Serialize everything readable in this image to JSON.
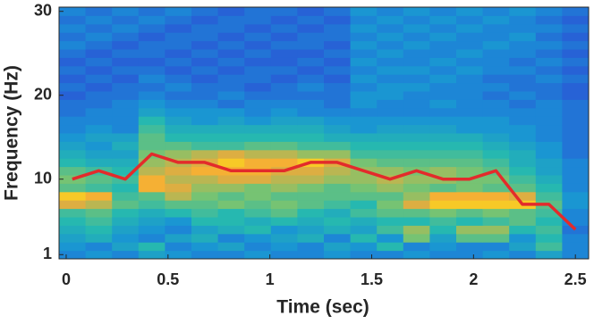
{
  "chart_data": {
    "type": "heatmap",
    "xlabel": "Time (sec)",
    "ylabel": "Frequency (Hz)",
    "x": [
      0.03,
      0.16,
      0.29,
      0.42,
      0.55,
      0.68,
      0.81,
      0.94,
      1.07,
      1.2,
      1.33,
      1.46,
      1.59,
      1.72,
      1.85,
      1.98,
      2.11,
      2.24,
      2.37,
      2.5
    ],
    "y": [
      1,
      2,
      3,
      4,
      5,
      6,
      7,
      8,
      9,
      10,
      11,
      12,
      13,
      14,
      15,
      16,
      17,
      18,
      19,
      20,
      21,
      22,
      23,
      24,
      25,
      26,
      27,
      28,
      29,
      30
    ],
    "z": [
      [
        0.3,
        0.35,
        0.3,
        0.4,
        0.35,
        0.3,
        0.3,
        0.35,
        0.3,
        0.3,
        0.35,
        0.3,
        0.3,
        0.35,
        0.3,
        0.3,
        0.35,
        0.3,
        0.4,
        0.3
      ],
      [
        0.35,
        0.3,
        0.4,
        0.5,
        0.3,
        0.35,
        0.4,
        0.3,
        0.35,
        0.3,
        0.4,
        0.35,
        0.5,
        0.3,
        0.35,
        0.3,
        0.3,
        0.4,
        0.55,
        0.3
      ],
      [
        0.4,
        0.45,
        0.35,
        0.3,
        0.4,
        0.45,
        0.3,
        0.35,
        0.4,
        0.45,
        0.3,
        0.5,
        0.35,
        0.65,
        0.4,
        0.6,
        0.6,
        0.35,
        0.5,
        0.3
      ],
      [
        0.45,
        0.5,
        0.4,
        0.35,
        0.3,
        0.4,
        0.45,
        0.5,
        0.35,
        0.4,
        0.45,
        0.4,
        0.55,
        0.7,
        0.5,
        0.7,
        0.7,
        0.5,
        0.55,
        0.25
      ],
      [
        0.5,
        0.55,
        0.45,
        0.4,
        0.35,
        0.5,
        0.5,
        0.45,
        0.5,
        0.45,
        0.5,
        0.45,
        0.5,
        0.5,
        0.55,
        0.5,
        0.55,
        0.6,
        0.5,
        0.3
      ],
      [
        0.55,
        0.6,
        0.5,
        0.45,
        0.5,
        0.55,
        0.5,
        0.55,
        0.6,
        0.5,
        0.45,
        0.55,
        0.6,
        0.6,
        0.65,
        0.6,
        0.65,
        0.6,
        0.55,
        0.3
      ],
      [
        0.8,
        0.75,
        0.6,
        0.55,
        0.6,
        0.6,
        0.65,
        0.6,
        0.65,
        0.6,
        0.55,
        0.5,
        0.65,
        0.8,
        0.9,
        0.9,
        0.9,
        0.9,
        0.6,
        0.35
      ],
      [
        0.9,
        0.85,
        0.55,
        0.6,
        0.75,
        0.65,
        0.6,
        0.65,
        0.6,
        0.6,
        0.6,
        0.6,
        0.6,
        0.7,
        0.85,
        0.85,
        0.85,
        0.8,
        0.55,
        0.35
      ],
      [
        0.6,
        0.55,
        0.5,
        0.85,
        0.8,
        0.7,
        0.7,
        0.65,
        0.7,
        0.65,
        0.6,
        0.65,
        0.7,
        0.65,
        0.6,
        0.65,
        0.6,
        0.6,
        0.5,
        0.3
      ],
      [
        0.65,
        0.6,
        0.55,
        0.85,
        0.75,
        0.75,
        0.8,
        0.8,
        0.75,
        0.75,
        0.7,
        0.7,
        0.75,
        0.7,
        0.7,
        0.65,
        0.65,
        0.55,
        0.45,
        0.3
      ],
      [
        0.6,
        0.55,
        0.5,
        0.75,
        0.8,
        0.85,
        0.85,
        0.85,
        0.8,
        0.8,
        0.75,
        0.7,
        0.7,
        0.65,
        0.7,
        0.65,
        0.6,
        0.5,
        0.4,
        0.3
      ],
      [
        0.5,
        0.45,
        0.45,
        0.7,
        0.75,
        0.8,
        0.9,
        0.85,
        0.85,
        0.9,
        0.8,
        0.65,
        0.6,
        0.6,
        0.6,
        0.6,
        0.55,
        0.45,
        0.4,
        0.3
      ],
      [
        0.45,
        0.4,
        0.4,
        0.65,
        0.7,
        0.75,
        0.8,
        0.75,
        0.75,
        0.7,
        0.7,
        0.55,
        0.55,
        0.55,
        0.55,
        0.55,
        0.5,
        0.45,
        0.35,
        0.25
      ],
      [
        0.4,
        0.35,
        0.45,
        0.6,
        0.6,
        0.55,
        0.55,
        0.6,
        0.6,
        0.55,
        0.55,
        0.5,
        0.5,
        0.5,
        0.5,
        0.5,
        0.45,
        0.4,
        0.35,
        0.25
      ],
      [
        0.35,
        0.4,
        0.4,
        0.6,
        0.5,
        0.5,
        0.5,
        0.5,
        0.5,
        0.5,
        0.45,
        0.45,
        0.45,
        0.45,
        0.45,
        0.45,
        0.4,
        0.35,
        0.3,
        0.25
      ],
      [
        0.3,
        0.35,
        0.3,
        0.55,
        0.45,
        0.45,
        0.45,
        0.45,
        0.45,
        0.45,
        0.4,
        0.35,
        0.4,
        0.4,
        0.4,
        0.35,
        0.35,
        0.35,
        0.3,
        0.25
      ],
      [
        0.3,
        0.3,
        0.3,
        0.5,
        0.4,
        0.35,
        0.4,
        0.35,
        0.4,
        0.4,
        0.35,
        0.35,
        0.35,
        0.35,
        0.35,
        0.35,
        0.35,
        0.3,
        0.3,
        0.25
      ],
      [
        0.25,
        0.3,
        0.3,
        0.4,
        0.35,
        0.35,
        0.35,
        0.3,
        0.35,
        0.3,
        0.3,
        0.3,
        0.3,
        0.3,
        0.3,
        0.3,
        0.3,
        0.3,
        0.3,
        0.25
      ],
      [
        0.25,
        0.25,
        0.3,
        0.35,
        0.3,
        0.3,
        0.25,
        0.3,
        0.3,
        0.3,
        0.25,
        0.35,
        0.3,
        0.3,
        0.35,
        0.3,
        0.3,
        0.25,
        0.3,
        0.25
      ],
      [
        0.2,
        0.25,
        0.25,
        0.3,
        0.25,
        0.25,
        0.3,
        0.25,
        0.25,
        0.25,
        0.25,
        0.35,
        0.35,
        0.3,
        0.3,
        0.3,
        0.25,
        0.3,
        0.25,
        0.2
      ],
      [
        0.25,
        0.2,
        0.25,
        0.25,
        0.3,
        0.25,
        0.25,
        0.2,
        0.25,
        0.3,
        0.25,
        0.3,
        0.35,
        0.35,
        0.3,
        0.3,
        0.3,
        0.25,
        0.25,
        0.2
      ],
      [
        0.2,
        0.25,
        0.2,
        0.3,
        0.25,
        0.2,
        0.25,
        0.25,
        0.2,
        0.25,
        0.2,
        0.35,
        0.3,
        0.3,
        0.35,
        0.3,
        0.25,
        0.25,
        0.3,
        0.25
      ],
      [
        0.25,
        0.2,
        0.25,
        0.25,
        0.2,
        0.25,
        0.2,
        0.25,
        0.25,
        0.2,
        0.25,
        0.3,
        0.35,
        0.35,
        0.3,
        0.35,
        0.3,
        0.3,
        0.25,
        0.2
      ],
      [
        0.2,
        0.25,
        0.2,
        0.2,
        0.25,
        0.2,
        0.25,
        0.2,
        0.2,
        0.25,
        0.2,
        0.35,
        0.3,
        0.3,
        0.35,
        0.3,
        0.3,
        0.25,
        0.3,
        0.25
      ],
      [
        0.25,
        0.2,
        0.25,
        0.25,
        0.2,
        0.25,
        0.2,
        0.25,
        0.2,
        0.2,
        0.25,
        0.3,
        0.35,
        0.3,
        0.3,
        0.35,
        0.3,
        0.3,
        0.25,
        0.2
      ],
      [
        0.3,
        0.25,
        0.2,
        0.25,
        0.25,
        0.2,
        0.25,
        0.2,
        0.25,
        0.25,
        0.2,
        0.35,
        0.3,
        0.35,
        0.3,
        0.3,
        0.35,
        0.3,
        0.3,
        0.25
      ],
      [
        0.25,
        0.3,
        0.25,
        0.2,
        0.25,
        0.25,
        0.2,
        0.25,
        0.2,
        0.25,
        0.25,
        0.3,
        0.35,
        0.3,
        0.35,
        0.3,
        0.3,
        0.35,
        0.25,
        0.2
      ],
      [
        0.3,
        0.25,
        0.3,
        0.25,
        0.2,
        0.25,
        0.25,
        0.2,
        0.25,
        0.2,
        0.25,
        0.35,
        0.3,
        0.35,
        0.3,
        0.35,
        0.3,
        0.3,
        0.3,
        0.25
      ],
      [
        0.25,
        0.3,
        0.25,
        0.3,
        0.25,
        0.2,
        0.25,
        0.25,
        0.2,
        0.25,
        0.2,
        0.3,
        0.35,
        0.3,
        0.35,
        0.3,
        0.35,
        0.3,
        0.25,
        0.2
      ],
      [
        0.3,
        0.25,
        0.3,
        0.25,
        0.3,
        0.25,
        0.2,
        0.25,
        0.25,
        0.2,
        0.25,
        0.35,
        0.3,
        0.35,
        0.3,
        0.35,
        0.3,
        0.35,
        0.3,
        0.25
      ]
    ],
    "clim": [
      0,
      1
    ],
    "colormap": [
      "#352a87",
      "#2b56d6",
      "#1992d6",
      "#26b8b0",
      "#7fc46c",
      "#f5a838",
      "#f9fb0e"
    ],
    "series": [
      {
        "color": "#e32b2b",
        "values": [
          10,
          11,
          10,
          13,
          12,
          12,
          11,
          11,
          11,
          12,
          12,
          11,
          10,
          11,
          10,
          10,
          11,
          7,
          7,
          4
        ]
      }
    ],
    "xlim": [
      -0.035,
      2.565
    ],
    "ylim": [
      0.5,
      30.5
    ],
    "xticks": [
      0,
      0.5,
      1,
      1.5,
      2,
      2.5
    ],
    "yticks": [
      1,
      10,
      20,
      30
    ]
  }
}
